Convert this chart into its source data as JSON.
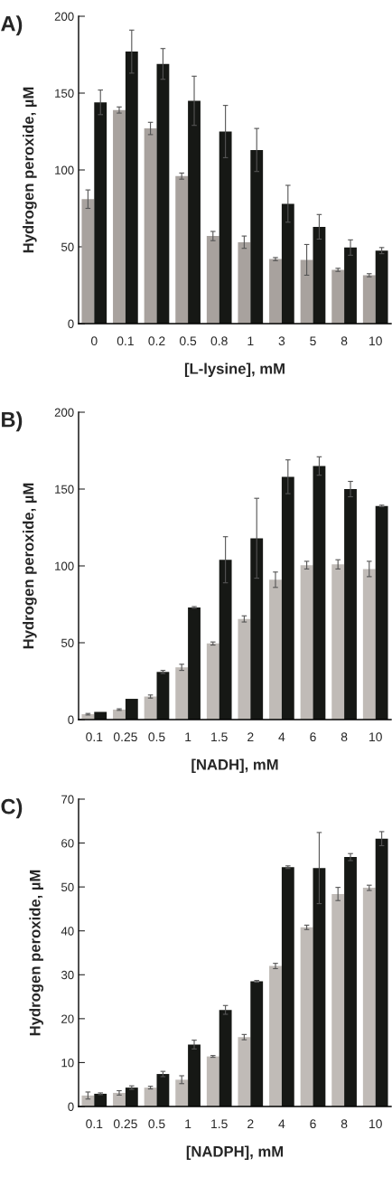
{
  "chart_data": [
    {
      "type": "bar",
      "title": "A)",
      "xlabel": "[L-lysine], mM",
      "ylabel": "Hydrogen peroxide, µM",
      "categories": [
        "0",
        "0.1",
        "0.2",
        "0.5",
        "0.8",
        "1",
        "3",
        "5",
        "8",
        "10"
      ],
      "ylim": [
        0,
        200
      ],
      "yticks": [
        0,
        50,
        100,
        150,
        200
      ],
      "grid": false,
      "series": [
        {
          "color": "#a8a29e",
          "values": [
            81,
            139,
            127,
            96,
            57,
            53,
            42,
            41.5,
            35,
            31.5
          ],
          "errors": [
            6,
            2,
            4,
            2,
            3,
            4,
            1,
            10,
            1,
            1
          ]
        },
        {
          "color": "#161815",
          "values": [
            144,
            177,
            169,
            145,
            125,
            113,
            78,
            63,
            49.5,
            47.5
          ],
          "errors": [
            8,
            14,
            10,
            16,
            17,
            14,
            12,
            8,
            5,
            2
          ]
        }
      ]
    },
    {
      "type": "bar",
      "title": "B)",
      "xlabel": "[NADH], mM",
      "ylabel": "Hydrogen peroxide, µM",
      "categories": [
        "0.1",
        "0.25",
        "0.5",
        "1",
        "1.5",
        "2",
        "4",
        "6",
        "8",
        "10"
      ],
      "ylim": [
        0,
        200
      ],
      "yticks": [
        0,
        50,
        100,
        150,
        200
      ],
      "grid": false,
      "series": [
        {
          "color": "#c0bbb7",
          "values": [
            3.5,
            6.5,
            15,
            34,
            49.5,
            65.5,
            91,
            100.5,
            101,
            98
          ],
          "errors": [
            0.5,
            0.5,
            1,
            2,
            1,
            2,
            5,
            2.5,
            3,
            5
          ]
        },
        {
          "color": "#161815",
          "values": [
            5,
            13.5,
            31,
            73,
            104,
            118,
            158,
            165,
            150,
            139
          ],
          "errors": [
            null,
            null,
            1,
            0.5,
            15,
            26,
            11,
            6,
            5,
            0.5
          ]
        }
      ]
    },
    {
      "type": "bar",
      "title": "C)",
      "xlabel": "[NADPH], mM",
      "ylabel": "Hydrogen peroxide, µM",
      "categories": [
        "0.1",
        "0.25",
        "0.5",
        "1",
        "1.5",
        "2",
        "4",
        "6",
        "8",
        "10"
      ],
      "ylim": [
        0,
        70
      ],
      "yticks": [
        0,
        10,
        20,
        30,
        40,
        50,
        60,
        70
      ],
      "grid": false,
      "series": [
        {
          "color": "#c0bbb7",
          "values": [
            2.5,
            3.1,
            4.3,
            6.1,
            11.4,
            15.8,
            32,
            40.8,
            48.4,
            49.8
          ],
          "errors": [
            0.8,
            0.5,
            0.3,
            0.9,
            0.2,
            0.6,
            0.6,
            0.5,
            1.5,
            0.6
          ]
        },
        {
          "color": "#161815",
          "values": [
            2.9,
            4.3,
            7.4,
            14.1,
            22,
            28.5,
            54.5,
            54.3,
            56.8,
            61
          ],
          "errors": [
            0.2,
            0.4,
            0.6,
            1,
            1,
            0.2,
            0.3,
            8.1,
            0.8,
            1.6
          ]
        }
      ]
    }
  ]
}
